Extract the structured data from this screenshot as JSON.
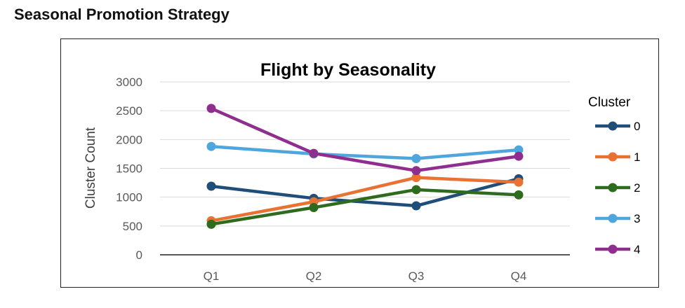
{
  "page": {
    "heading": "Seasonal Promotion Strategy"
  },
  "chart_data": {
    "type": "line",
    "title": "Flight by Seasonality",
    "xlabel": "",
    "ylabel": "Cluster Count",
    "categories": [
      "Q1",
      "Q2",
      "Q3",
      "Q4"
    ],
    "ylim": [
      0,
      3000
    ],
    "yticks": [
      0,
      500,
      1000,
      1500,
      2000,
      2500,
      3000
    ],
    "grid": true,
    "legend": {
      "title": "Cluster",
      "placement": "right"
    },
    "series": [
      {
        "name": "0",
        "color": "#1F4E79",
        "values": [
          1190,
          980,
          850,
          1320
        ]
      },
      {
        "name": "1",
        "color": "#E97132",
        "values": [
          590,
          920,
          1340,
          1260
        ]
      },
      {
        "name": "2",
        "color": "#2E6B1E",
        "values": [
          530,
          820,
          1130,
          1040
        ]
      },
      {
        "name": "3",
        "color": "#4EA6DC",
        "values": [
          1880,
          1750,
          1670,
          1820
        ]
      },
      {
        "name": "4",
        "color": "#8E2E8E",
        "values": [
          2540,
          1760,
          1460,
          1710
        ]
      }
    ]
  }
}
